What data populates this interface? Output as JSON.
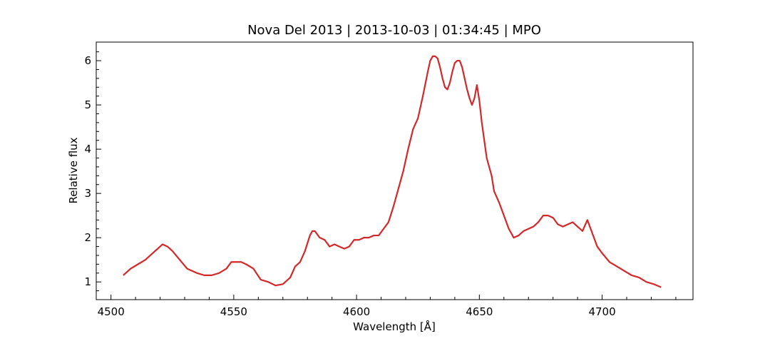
{
  "chart_data": {
    "type": "line",
    "title": "Nova Del 2013 | 2013-10-03 | 01:34:45 | MPO",
    "xlabel": "Wavelength [Å]",
    "ylabel": "Relative flux",
    "xlim": [
      4494,
      4737
    ],
    "ylim": [
      0.6,
      6.42
    ],
    "xticks": [
      4500,
      4550,
      4600,
      4650,
      4700
    ],
    "xtick_labels": [
      "4500",
      "4550",
      "4600",
      "4650",
      "4700"
    ],
    "yticks": [
      1,
      2,
      3,
      4,
      5,
      6
    ],
    "ytick_labels": [
      "1",
      "2",
      "3",
      "4",
      "5",
      "6"
    ],
    "grid": false,
    "series": [
      {
        "color": "#d62728",
        "x": [
          4505,
          4508,
          4511,
          4514,
          4517,
          4519,
          4521,
          4523,
          4525,
          4528,
          4531,
          4535,
          4538,
          4541,
          4544,
          4547,
          4549,
          4551,
          4553,
          4555,
          4558,
          4561,
          4564,
          4567,
          4570,
          4573,
          4575,
          4577,
          4579,
          4581,
          4582,
          4583,
          4585,
          4587,
          4589,
          4591,
          4593,
          4595,
          4597,
          4599,
          4601,
          4603,
          4605,
          4607,
          4609,
          4611,
          4613,
          4615,
          4617,
          4619,
          4620,
          4621,
          4623,
          4625,
          4627,
          4629,
          4630,
          4631,
          4632,
          4633,
          4634,
          4635,
          4636,
          4637,
          4638,
          4639,
          4640,
          4641,
          4642,
          4643,
          4644,
          4645,
          4646,
          4647,
          4648,
          4649,
          4650,
          4651,
          4652,
          4653,
          4654,
          4655,
          4656,
          4658,
          4660,
          4662,
          4664,
          4666,
          4668,
          4670,
          4672,
          4674,
          4676,
          4678,
          4680,
          4682,
          4684,
          4686,
          4688,
          4690,
          4692,
          4694,
          4696,
          4698,
          4700,
          4703,
          4706,
          4709,
          4712,
          4715,
          4718,
          4721,
          4724
        ],
        "y": [
          1.15,
          1.3,
          1.4,
          1.5,
          1.65,
          1.75,
          1.85,
          1.8,
          1.7,
          1.5,
          1.3,
          1.2,
          1.15,
          1.15,
          1.2,
          1.3,
          1.45,
          1.45,
          1.45,
          1.4,
          1.3,
          1.05,
          1.0,
          0.92,
          0.95,
          1.1,
          1.35,
          1.45,
          1.7,
          2.05,
          2.15,
          2.15,
          2.0,
          1.95,
          1.8,
          1.85,
          1.8,
          1.75,
          1.8,
          1.95,
          1.95,
          2.0,
          2.0,
          2.05,
          2.05,
          2.2,
          2.35,
          2.7,
          3.1,
          3.5,
          3.75,
          4.0,
          4.45,
          4.7,
          5.2,
          5.75,
          6.0,
          6.1,
          6.1,
          6.05,
          5.85,
          5.6,
          5.4,
          5.35,
          5.5,
          5.75,
          5.95,
          6.0,
          6.0,
          5.85,
          5.6,
          5.35,
          5.15,
          5.0,
          5.15,
          5.45,
          5.1,
          4.6,
          4.2,
          3.8,
          3.6,
          3.4,
          3.05,
          2.8,
          2.5,
          2.2,
          2.0,
          2.05,
          2.15,
          2.2,
          2.25,
          2.35,
          2.5,
          2.5,
          2.45,
          2.3,
          2.25,
          2.3,
          2.35,
          2.25,
          2.15,
          2.4,
          2.1,
          1.8,
          1.65,
          1.45,
          1.35,
          1.25,
          1.15,
          1.1,
          1.0,
          0.95,
          0.88
        ]
      }
    ]
  }
}
